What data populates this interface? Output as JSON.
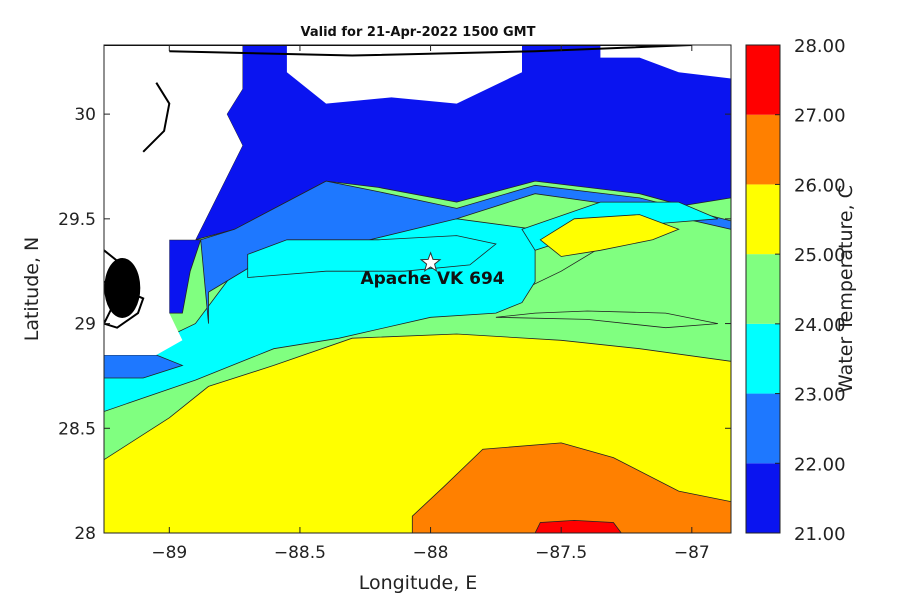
{
  "chart_data": {
    "type": "heatmap",
    "title": "Valid for 21-Apr-2022 1500 GMT",
    "xlabel": "Longitude, E",
    "ylabel": "Latitude, N",
    "xlim": [
      -89.25,
      -86.85
    ],
    "ylim": [
      28.0,
      30.33
    ],
    "xticks": [
      -89,
      -88.5,
      -88,
      -87.5,
      -87
    ],
    "yticks": [
      28,
      28.5,
      29,
      29.5,
      30
    ],
    "colorbar": {
      "label": "Water Temperature, C",
      "levels": [
        "21.00",
        "22.00",
        "23.00",
        "24.00",
        "25.00",
        "26.00",
        "27.00",
        "28.00"
      ],
      "colors": [
        "#0a14f0",
        "#1e78ff",
        "#00ffff",
        "#80ff80",
        "#ffff00",
        "#ff8000",
        "#ff0000"
      ]
    },
    "marker": {
      "label": "Apache VK 694",
      "lon": -88.0,
      "lat": 29.29,
      "symbol": "star"
    },
    "regions": [
      {
        "value_range": [
          21,
          22
        ],
        "color": "#0a14f0",
        "polygon": [
          [
            -88.72,
            30.33
          ],
          [
            -86.85,
            30.33
          ],
          [
            -86.85,
            29.5
          ],
          [
            -87.2,
            29.62
          ],
          [
            -87.6,
            29.68
          ],
          [
            -87.9,
            29.58
          ],
          [
            -88.2,
            29.65
          ],
          [
            -88.4,
            29.68
          ],
          [
            -88.75,
            29.45
          ],
          [
            -88.9,
            29.4
          ],
          [
            -88.72,
            29.85
          ],
          [
            -88.78,
            30.0
          ],
          [
            -88.72,
            30.12
          ]
        ]
      },
      {
        "value_range": [
          21,
          22
        ],
        "color": "#0a14f0",
        "polygon": [
          [
            -89.0,
            29.4
          ],
          [
            -88.88,
            29.4
          ],
          [
            -88.92,
            29.25
          ],
          [
            -88.95,
            29.05
          ],
          [
            -89.0,
            29.05
          ]
        ]
      },
      {
        "value_range": [
          24,
          25
        ],
        "color": "#80ff80",
        "polygon": [
          [
            -89.25,
            28.0
          ],
          [
            -86.85,
            28.0
          ],
          [
            -86.85,
            29.6
          ],
          [
            -87.1,
            29.55
          ],
          [
            -87.3,
            29.4
          ],
          [
            -87.5,
            29.25
          ],
          [
            -87.75,
            29.1
          ],
          [
            -88.0,
            29.05
          ],
          [
            -88.35,
            28.95
          ],
          [
            -88.6,
            28.9
          ],
          [
            -88.9,
            28.75
          ],
          [
            -89.25,
            28.6
          ]
        ]
      },
      {
        "value_range": [
          23,
          24
        ],
        "color": "#00ffff",
        "polygon": [
          [
            -89.25,
            28.58
          ],
          [
            -88.9,
            28.73
          ],
          [
            -88.6,
            28.88
          ],
          [
            -88.35,
            28.93
          ],
          [
            -88.0,
            29.03
          ],
          [
            -87.75,
            29.05
          ],
          [
            -87.65,
            29.1
          ],
          [
            -87.6,
            29.2
          ],
          [
            -87.6,
            29.45
          ],
          [
            -87.9,
            29.5
          ],
          [
            -88.2,
            29.45
          ],
          [
            -88.55,
            29.4
          ],
          [
            -88.75,
            29.25
          ],
          [
            -88.9,
            29.0
          ],
          [
            -89.1,
            28.88
          ],
          [
            -89.25,
            28.85
          ]
        ]
      },
      {
        "value_range": [
          22,
          23
        ],
        "color": "#1e78ff",
        "polygon": [
          [
            -88.88,
            29.4
          ],
          [
            -88.75,
            29.45
          ],
          [
            -88.4,
            29.68
          ],
          [
            -88.2,
            29.63
          ],
          [
            -87.9,
            29.55
          ],
          [
            -87.6,
            29.66
          ],
          [
            -87.2,
            29.6
          ],
          [
            -86.85,
            29.49
          ],
          [
            -86.85,
            29.45
          ],
          [
            -87.2,
            29.55
          ],
          [
            -87.6,
            29.62
          ],
          [
            -87.9,
            29.5
          ],
          [
            -88.3,
            29.38
          ],
          [
            -88.65,
            29.3
          ],
          [
            -88.85,
            29.15
          ],
          [
            -88.85,
            29.0
          ]
        ]
      },
      {
        "value_range": [
          22,
          23
        ],
        "color": "#1e78ff",
        "polygon": [
          [
            -89.25,
            28.85
          ],
          [
            -89.05,
            28.85
          ],
          [
            -88.95,
            28.8
          ],
          [
            -89.1,
            28.74
          ],
          [
            -89.25,
            28.74
          ]
        ]
      },
      {
        "value_range": [
          23,
          24
        ],
        "color": "#00ffff",
        "polygon": [
          [
            -88.7,
            29.33
          ],
          [
            -88.55,
            29.4
          ],
          [
            -88.2,
            29.4
          ],
          [
            -87.9,
            29.42
          ],
          [
            -87.75,
            29.38
          ],
          [
            -87.85,
            29.28
          ],
          [
            -88.1,
            29.25
          ],
          [
            -88.4,
            29.25
          ],
          [
            -88.7,
            29.22
          ]
        ]
      },
      {
        "value_range": [
          23,
          24
        ],
        "color": "#00ffff",
        "polygon": [
          [
            -87.65,
            29.45
          ],
          [
            -87.35,
            29.58
          ],
          [
            -87.05,
            29.58
          ],
          [
            -86.9,
            29.5
          ],
          [
            -87.1,
            29.48
          ],
          [
            -87.35,
            29.45
          ],
          [
            -87.6,
            29.35
          ]
        ]
      },
      {
        "value_range": [
          25,
          26
        ],
        "color": "#ffff00",
        "polygon": [
          [
            -89.25,
            28.0
          ],
          [
            -86.85,
            28.0
          ],
          [
            -86.85,
            28.82
          ],
          [
            -87.2,
            28.88
          ],
          [
            -87.5,
            28.92
          ],
          [
            -87.9,
            28.95
          ],
          [
            -88.3,
            28.93
          ],
          [
            -88.6,
            28.8
          ],
          [
            -88.85,
            28.7
          ],
          [
            -89.0,
            28.55
          ],
          [
            -89.25,
            28.35
          ]
        ]
      },
      {
        "value_range": [
          25,
          26
        ],
        "color": "#ffff00",
        "polygon": [
          [
            -87.58,
            29.4
          ],
          [
            -87.45,
            29.5
          ],
          [
            -87.2,
            29.52
          ],
          [
            -87.05,
            29.45
          ],
          [
            -87.15,
            29.4
          ],
          [
            -87.35,
            29.35
          ],
          [
            -87.5,
            29.32
          ]
        ]
      },
      {
        "value_range": [
          24,
          25
        ],
        "color": "#80ff80",
        "polygon": [
          [
            -87.75,
            29.03
          ],
          [
            -87.4,
            29.02
          ],
          [
            -87.1,
            28.98
          ],
          [
            -86.9,
            29.0
          ],
          [
            -87.1,
            29.05
          ],
          [
            -87.4,
            29.06
          ],
          [
            -87.6,
            29.05
          ]
        ]
      },
      {
        "value_range": [
          26,
          27
        ],
        "color": "#ff8000",
        "polygon": [
          [
            -88.07,
            28.0
          ],
          [
            -86.85,
            28.0
          ],
          [
            -86.85,
            28.15
          ],
          [
            -87.05,
            28.2
          ],
          [
            -87.3,
            28.36
          ],
          [
            -87.5,
            28.43
          ],
          [
            -87.8,
            28.4
          ],
          [
            -87.95,
            28.22
          ],
          [
            -88.07,
            28.08
          ]
        ]
      },
      {
        "value_range": [
          27,
          28
        ],
        "color": "#ff0000",
        "polygon": [
          [
            -87.6,
            28.0
          ],
          [
            -87.27,
            28.0
          ],
          [
            -87.3,
            28.05
          ],
          [
            -87.45,
            28.06
          ],
          [
            -87.58,
            28.05
          ]
        ]
      }
    ],
    "land": [
      {
        "polygon": [
          [
            -89.25,
            30.33
          ],
          [
            -88.72,
            30.33
          ],
          [
            -88.72,
            30.12
          ],
          [
            -88.78,
            30.0
          ],
          [
            -88.72,
            29.85
          ],
          [
            -88.9,
            29.4
          ],
          [
            -89.0,
            29.4
          ],
          [
            -89.0,
            29.05
          ],
          [
            -88.95,
            28.92
          ],
          [
            -89.05,
            28.85
          ],
          [
            -89.25,
            28.85
          ]
        ]
      },
      {
        "polygon": [
          [
            -88.55,
            30.33
          ],
          [
            -87.65,
            30.33
          ],
          [
            -87.65,
            30.2
          ],
          [
            -87.9,
            30.05
          ],
          [
            -88.15,
            30.08
          ],
          [
            -88.4,
            30.05
          ],
          [
            -88.55,
            30.2
          ]
        ]
      },
      {
        "polygon": [
          [
            -87.35,
            30.33
          ],
          [
            -86.85,
            30.33
          ],
          [
            -86.85,
            30.17
          ],
          [
            -87.05,
            30.2
          ],
          [
            -87.2,
            30.27
          ],
          [
            -87.35,
            30.27
          ]
        ]
      }
    ],
    "coastline": [
      [
        [
          -89.25,
          30.33
        ],
        [
          -87.0,
          30.33
        ],
        [
          -87.6,
          30.3
        ],
        [
          -88.3,
          30.28
        ],
        [
          -89.0,
          30.3
        ]
      ],
      [
        [
          -89.05,
          30.15
        ],
        [
          -89.0,
          30.05
        ],
        [
          -89.02,
          29.92
        ],
        [
          -89.1,
          29.82
        ]
      ],
      [
        [
          -89.25,
          29.2
        ],
        [
          -89.1,
          29.12
        ],
        [
          -89.12,
          29.05
        ],
        [
          -89.2,
          28.98
        ],
        [
          -89.25,
          29.0
        ],
        [
          -89.15,
          29.25
        ],
        [
          -89.25,
          29.35
        ]
      ]
    ]
  }
}
